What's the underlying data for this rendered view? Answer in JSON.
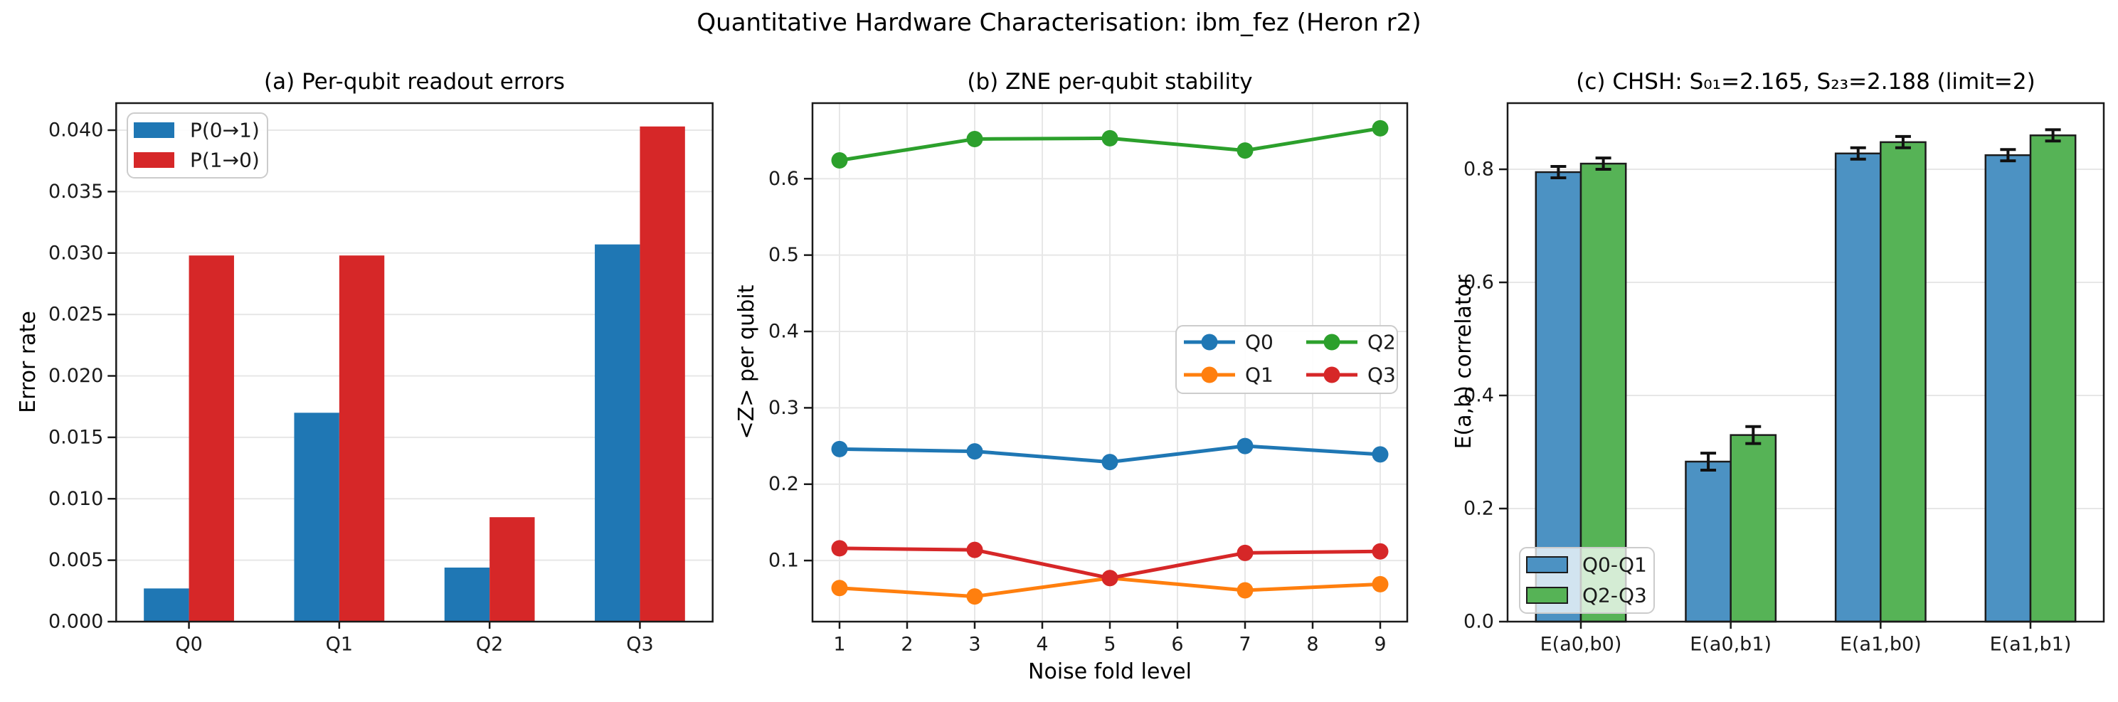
{
  "figure": {
    "suptitle": "Quantitative Hardware Characterisation: ibm_fez (Heron r2)"
  },
  "chart_data": [
    {
      "type": "bar",
      "panel": "a",
      "title": "(a) Per-qubit readout errors",
      "xlabel": "",
      "ylabel": "Error rate",
      "categories": [
        "Q0",
        "Q1",
        "Q2",
        "Q3"
      ],
      "series": [
        {
          "name": "P(0→1)",
          "color": "#1f77b4",
          "values": [
            0.0027,
            0.017,
            0.0044,
            0.0307
          ]
        },
        {
          "name": "P(1→0)",
          "color": "#d62728",
          "values": [
            0.0298,
            0.0298,
            0.0085,
            0.0403
          ]
        }
      ],
      "ytick_values": [
        0.0,
        0.005,
        0.01,
        0.015,
        0.02,
        0.025,
        0.03,
        0.035,
        0.04
      ],
      "ytick_labels": [
        "0.000",
        "0.005",
        "0.010",
        "0.015",
        "0.020",
        "0.025",
        "0.030",
        "0.035",
        "0.040"
      ],
      "ylim": [
        0,
        0.0422
      ],
      "grid": "horizontal",
      "legend": {
        "position": "upper-left",
        "labels": [
          "P(0→1)",
          "P(1→0)"
        ]
      }
    },
    {
      "type": "line",
      "panel": "b",
      "title": "(b) ZNE per-qubit stability",
      "xlabel": "Noise fold level",
      "ylabel": "<Z> per qubit",
      "x": [
        1,
        3,
        5,
        7,
        9
      ],
      "series": [
        {
          "name": "Q0",
          "color": "#1f77b4",
          "values": [
            0.246,
            0.243,
            0.229,
            0.25,
            0.239
          ]
        },
        {
          "name": "Q1",
          "color": "#ff7f0e",
          "values": [
            0.064,
            0.053,
            0.077,
            0.061,
            0.069
          ]
        },
        {
          "name": "Q2",
          "color": "#2ca02c",
          "values": [
            0.624,
            0.652,
            0.653,
            0.637,
            0.666
          ]
        },
        {
          "name": "Q3",
          "color": "#d62728",
          "values": [
            0.116,
            0.114,
            0.077,
            0.11,
            0.112
          ]
        }
      ],
      "xtick_values": [
        1,
        2,
        3,
        4,
        5,
        6,
        7,
        8,
        9
      ],
      "xtick_labels": [
        "1",
        "2",
        "3",
        "4",
        "5",
        "6",
        "7",
        "8",
        "9"
      ],
      "ytick_values": [
        0.1,
        0.2,
        0.3,
        0.4,
        0.5,
        0.6
      ],
      "ytick_labels": [
        "0.1",
        "0.2",
        "0.3",
        "0.4",
        "0.5",
        "0.6"
      ],
      "xlim": [
        0.6,
        9.4
      ],
      "ylim": [
        0.02,
        0.699
      ],
      "grid": "both",
      "legend": {
        "position": "center-right",
        "columns": 2,
        "labels": [
          "Q0",
          "Q1",
          "Q2",
          "Q3"
        ]
      }
    },
    {
      "type": "bar",
      "panel": "c",
      "title": "(c) CHSH: S₀₁=2.165, S₂₃=2.188 (limit=2)",
      "xlabel": "",
      "ylabel": "E(a,b) correlator",
      "categories": [
        "E(a0,b0)",
        "E(a0,b1)",
        "E(a1,b0)",
        "E(a1,b1)"
      ],
      "series": [
        {
          "name": "Q0-Q1",
          "color": "#4C92C3",
          "edgecolor": "#1c1c1c",
          "values": [
            0.795,
            0.283,
            0.828,
            0.825
          ],
          "errors": [
            0.01,
            0.015,
            0.01,
            0.01
          ]
        },
        {
          "name": "Q2-Q3",
          "color": "#56B356",
          "edgecolor": "#1c1c1c",
          "values": [
            0.81,
            0.33,
            0.848,
            0.86
          ],
          "errors": [
            0.01,
            0.015,
            0.01,
            0.01
          ]
        }
      ],
      "ytick_values": [
        0.0,
        0.2,
        0.4,
        0.6,
        0.8
      ],
      "ytick_labels": [
        "0.0",
        "0.2",
        "0.4",
        "0.6",
        "0.8"
      ],
      "ylim": [
        0,
        0.917
      ],
      "grid": "horizontal",
      "legend": {
        "position": "lower-left",
        "labels": [
          "Q0-Q1",
          "Q2-Q3"
        ]
      }
    }
  ]
}
